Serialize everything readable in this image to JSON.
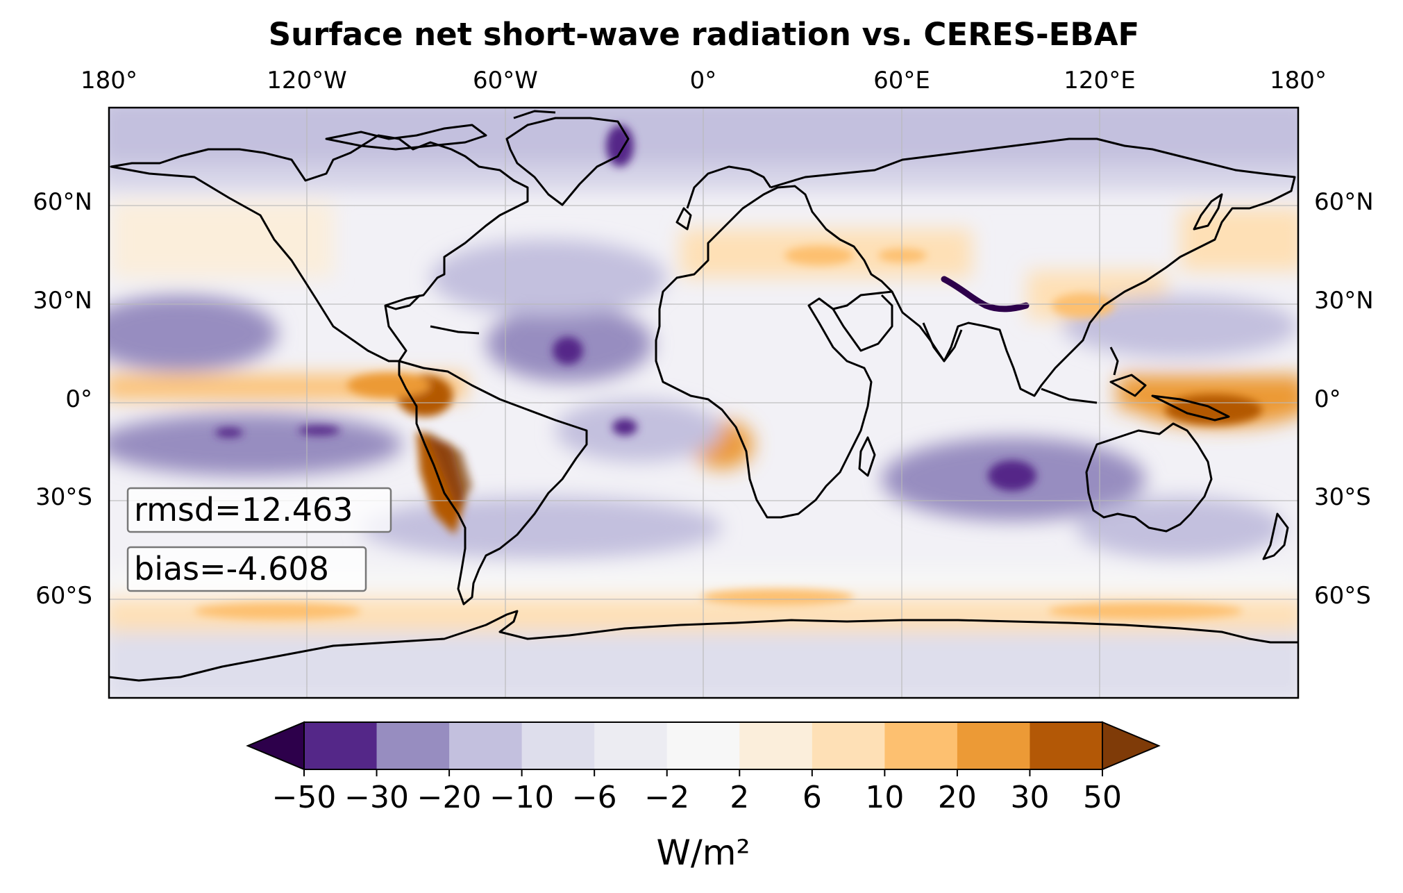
{
  "title": "Surface net short-wave radiation vs. CERES-EBAF",
  "lon_ticks": [
    "180°",
    "120°W",
    "60°W",
    "0°",
    "60°E",
    "120°E",
    "180°"
  ],
  "lat_ticks": [
    "60°N",
    "30°N",
    "0°",
    "30°S",
    "60°S"
  ],
  "stats": {
    "rmsd": "rmsd=12.463",
    "bias": "bias=-4.608"
  },
  "colorbar": {
    "label": "W/m²",
    "ticks": [
      "−50",
      "−30",
      "−20",
      "−10",
      "−6",
      "−2",
      "2",
      "6",
      "10",
      "20",
      "30",
      "50"
    ],
    "levels": [
      -50,
      -30,
      -20,
      -10,
      -6,
      -2,
      2,
      6,
      10,
      20,
      30,
      50
    ],
    "colors": [
      "#2d004b",
      "#542788",
      "#978dc0",
      "#c3c0de",
      "#dedeec",
      "#ececf2",
      "#f7f7f7",
      "#fbeedb",
      "#fee0b6",
      "#fdc070",
      "#ec9a36",
      "#b35806",
      "#7f3b08"
    ],
    "extend": "both"
  },
  "map": {
    "projection": "PlateCarree",
    "lon_range": [
      -180,
      180
    ],
    "lat_range": [
      -90,
      90
    ],
    "coastlines": true,
    "gridlines": true,
    "colormap": "PuOr (purple negative, orange positive)"
  }
}
